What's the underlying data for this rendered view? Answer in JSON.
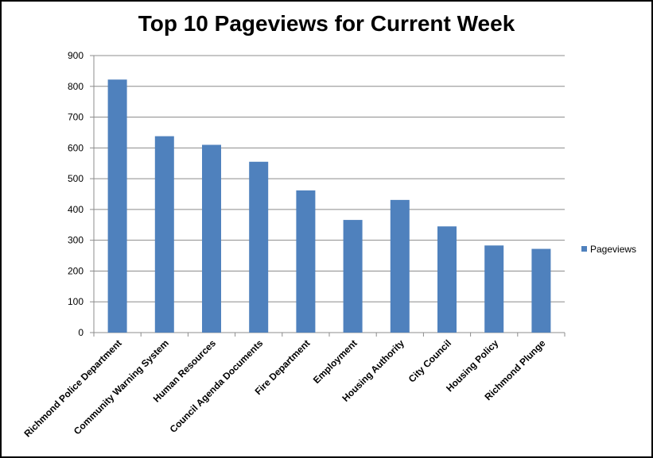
{
  "chart_data": {
    "type": "bar",
    "title": "Top 10 Pageviews for Current Week",
    "categories": [
      "Richmond Police Department",
      "Community Warning System",
      "Human Resources",
      "Council Agenda Documents",
      "Fire Department",
      "Employment",
      "Housing Authority",
      "City Council",
      "Housing Policy",
      "Richmond Plunge"
    ],
    "series": [
      {
        "name": "Pageviews",
        "values": [
          822,
          638,
          610,
          555,
          462,
          366,
          431,
          345,
          283,
          272
        ],
        "color": "#4f81bd"
      }
    ],
    "ylim": [
      0,
      900
    ],
    "yticks": [
      0,
      100,
      200,
      300,
      400,
      500,
      600,
      700,
      800,
      900
    ],
    "grid": true,
    "legend": "right"
  }
}
